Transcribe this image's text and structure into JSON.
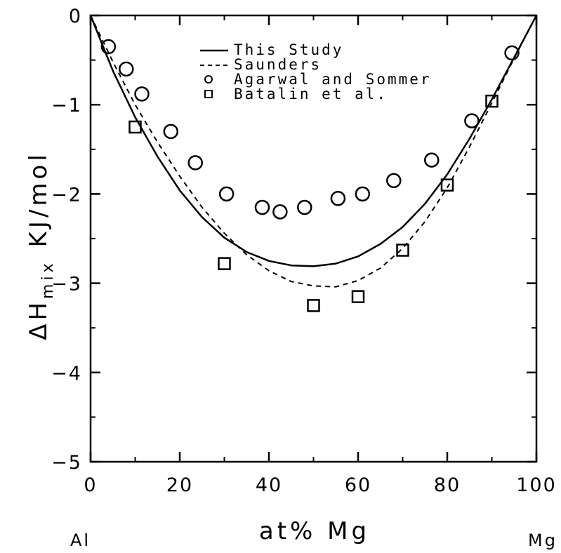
{
  "chart_data": {
    "type": "scatter",
    "xlim": [
      0,
      100
    ],
    "ylim": [
      -5,
      0
    ],
    "x_ticks": [
      0,
      20,
      40,
      60,
      80,
      100
    ],
    "x_tick_labels": [
      "0",
      "20",
      "40",
      "60",
      "80",
      "100"
    ],
    "y_ticks": [
      0,
      -1,
      -2,
      -3,
      -4,
      -5
    ],
    "y_tick_labels": [
      "0",
      "−1",
      "−2",
      "−3",
      "−4",
      "−5"
    ],
    "xlabel": "at% Mg",
    "ylabel": "ΔHmix KJ/mol",
    "ylabel_main": "ΔH",
    "ylabel_sub": "mix",
    "ylabel_unit": "KJ/mol",
    "x_left_label": "Al",
    "x_right_label": "Mg",
    "grid": false,
    "legend_position": "top-center",
    "series": [
      {
        "name": "This Study",
        "style": "solid-line",
        "x": [
          0,
          5,
          10,
          15,
          20,
          25,
          30,
          35,
          40,
          45,
          50,
          55,
          60,
          65,
          70,
          75,
          80,
          85,
          90,
          95,
          100
        ],
        "y": [
          0,
          -0.62,
          -1.14,
          -1.58,
          -1.96,
          -2.26,
          -2.49,
          -2.65,
          -2.75,
          -2.8,
          -2.81,
          -2.78,
          -2.7,
          -2.56,
          -2.37,
          -2.11,
          -1.78,
          -1.38,
          -0.94,
          -0.47,
          0
        ]
      },
      {
        "name": "Saunders",
        "style": "dashed-line",
        "x": [
          0,
          5,
          10,
          15,
          20,
          25,
          30,
          35,
          40,
          45,
          50,
          55,
          60,
          65,
          70,
          75,
          80,
          85,
          90,
          95,
          100
        ],
        "y": [
          0,
          -0.52,
          -1.0,
          -1.42,
          -1.8,
          -2.15,
          -2.44,
          -2.68,
          -2.86,
          -2.98,
          -3.03,
          -3.04,
          -2.97,
          -2.83,
          -2.61,
          -2.31,
          -1.93,
          -1.47,
          -0.98,
          -0.48,
          0
        ]
      },
      {
        "name": "Agarwal and Sommer",
        "style": "circle",
        "x": [
          4,
          8,
          11.5,
          18,
          23.5,
          30.5,
          38.5,
          42.5,
          48,
          55.5,
          61,
          68,
          76.5,
          85.5,
          94.5
        ],
        "y": [
          -0.35,
          -0.6,
          -0.88,
          -1.3,
          -1.65,
          -2.0,
          -2.15,
          -2.2,
          -2.15,
          -2.05,
          -2.0,
          -1.85,
          -1.62,
          -1.18,
          -0.42
        ]
      },
      {
        "name": "Batalin et al.",
        "style": "square",
        "x": [
          10,
          30,
          50,
          60,
          70,
          80,
          90
        ],
        "y": [
          -1.25,
          -2.78,
          -3.25,
          -3.15,
          -2.63,
          -1.9,
          -0.96
        ]
      }
    ]
  }
}
